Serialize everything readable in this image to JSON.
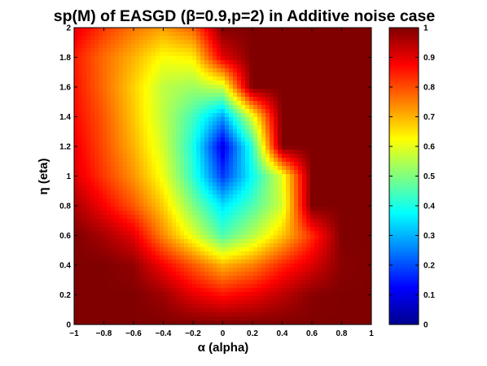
{
  "chart_data": {
    "type": "heatmap",
    "title": "sp(M) of EASGD (β=0.9,p=2) in Additive noise case",
    "xlabel": "α (alpha)",
    "ylabel": "η (eta)",
    "xlim": [
      -1,
      1
    ],
    "ylim": [
      0,
      2
    ],
    "xticks": [
      "−1",
      "−0.8",
      "−0.6",
      "−0.4",
      "−0.2",
      "0",
      "0.2",
      "0.4",
      "0.6",
      "0.8",
      "1"
    ],
    "yticks": [
      "0",
      "0.2",
      "0.4",
      "0.6",
      "0.8",
      "1",
      "1.2",
      "1.4",
      "1.6",
      "1.8",
      "2"
    ],
    "colorbar": {
      "colormap": "jet",
      "range": [
        0,
        1
      ],
      "ticks": [
        "0",
        "0.1",
        "0.2",
        "0.3",
        "0.4",
        "0.5",
        "0.6",
        "0.7",
        "0.8",
        "0.9",
        "1"
      ]
    },
    "x": [
      -1,
      -0.8,
      -0.6,
      -0.4,
      -0.2,
      0,
      0.2,
      0.4,
      0.6,
      0.8,
      1
    ],
    "y": [
      0,
      0.2,
      0.4,
      0.6,
      0.8,
      1,
      1.2,
      1.4,
      1.6,
      1.8,
      2
    ],
    "z": [
      [
        1,
        1,
        1,
        1,
        1,
        1,
        1,
        1,
        1,
        1,
        1
      ],
      [
        1,
        1,
        1,
        0.97,
        0.9,
        0.86,
        0.89,
        0.94,
        0.99,
        1,
        1
      ],
      [
        1,
        1,
        0.98,
        0.88,
        0.79,
        0.7,
        0.75,
        0.84,
        0.91,
        0.99,
        1
      ],
      [
        1,
        0.96,
        0.9,
        0.74,
        0.6,
        0.45,
        0.55,
        0.68,
        0.83,
        1,
        1
      ],
      [
        0.96,
        0.88,
        0.79,
        0.67,
        0.5,
        0.35,
        0.45,
        0.58,
        1,
        1,
        1
      ],
      [
        0.91,
        0.82,
        0.73,
        0.61,
        0.42,
        0.18,
        0.38,
        0.6,
        1,
        1,
        1
      ],
      [
        0.89,
        0.8,
        0.7,
        0.58,
        0.4,
        0.1,
        0.42,
        1,
        1,
        1,
        1
      ],
      [
        0.87,
        0.79,
        0.68,
        0.56,
        0.44,
        0.28,
        0.6,
        1,
        1,
        1,
        1
      ],
      [
        0.86,
        0.77,
        0.67,
        0.56,
        0.53,
        0.58,
        1,
        1,
        1,
        1,
        1
      ],
      [
        0.85,
        0.77,
        0.7,
        0.62,
        0.64,
        0.9,
        1,
        1,
        1,
        1,
        1
      ],
      [
        0.9,
        0.82,
        0.76,
        0.72,
        0.78,
        1,
        1,
        1,
        1,
        1,
        1
      ]
    ]
  }
}
